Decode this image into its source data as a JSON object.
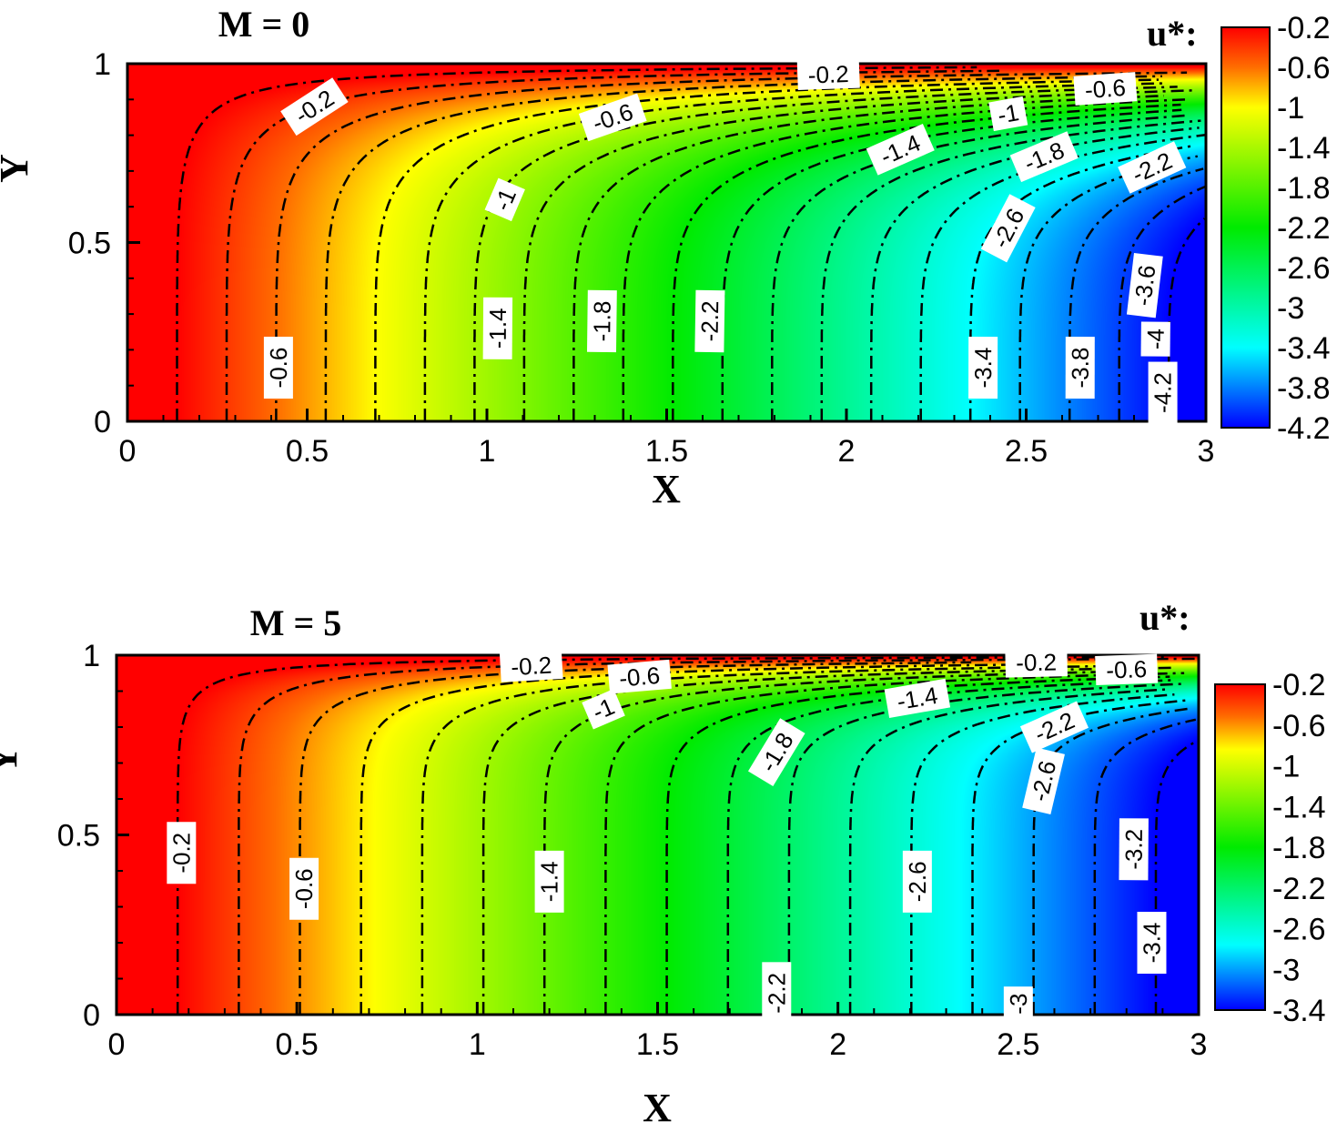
{
  "chart_data": [
    {
      "type": "heatmap",
      "subtype": "filled-contour",
      "title": "M = 0",
      "xlabel": "X",
      "ylabel": "Y",
      "xlim": [
        0,
        3
      ],
      "ylim": [
        0,
        1
      ],
      "xticks": [
        "0",
        "0.5",
        "1",
        "1.5",
        "2",
        "2.5",
        "3"
      ],
      "yticks": [
        "0",
        "0.5",
        "1"
      ],
      "colorbar": {
        "title": "u*:",
        "ticks": [
          "-0.2",
          "-0.6",
          "-1",
          "-1.4",
          "-1.8",
          "-2.2",
          "-2.6",
          "-3",
          "-3.4",
          "-3.8",
          "-4.2"
        ],
        "range": [
          -4.2,
          -0.2
        ]
      },
      "field_model": {
        "amplitude": 1.45,
        "boundary_exponent": 6
      },
      "levels": {
        "from": -0.2,
        "to": -4.2,
        "step": -0.2
      },
      "contour_labels": [
        {
          "text": "-0.2",
          "x": 0.52,
          "y": 0.88
        },
        {
          "text": "-0.2",
          "x": 1.95,
          "y": 0.97
        },
        {
          "text": "-0.6",
          "x": 1.35,
          "y": 0.85
        },
        {
          "text": "-0.6",
          "x": 2.72,
          "y": 0.93
        },
        {
          "text": "-1",
          "x": 1.05,
          "y": 0.62
        },
        {
          "text": "-1",
          "x": 2.45,
          "y": 0.86
        },
        {
          "text": "-1.4",
          "x": 2.15,
          "y": 0.76
        },
        {
          "text": "-1.4",
          "x": 1.03,
          "y": 0.26
        },
        {
          "text": "-1.8",
          "x": 2.55,
          "y": 0.74
        },
        {
          "text": "-1.8",
          "x": 1.32,
          "y": 0.28
        },
        {
          "text": "-2.2",
          "x": 2.85,
          "y": 0.71
        },
        {
          "text": "-2.2",
          "x": 1.62,
          "y": 0.28
        },
        {
          "text": "-2.6",
          "x": 2.45,
          "y": 0.54
        },
        {
          "text": "-3.4",
          "x": 2.38,
          "y": 0.15
        },
        {
          "text": "-3.6",
          "x": 2.83,
          "y": 0.38
        },
        {
          "text": "-3.8",
          "x": 2.65,
          "y": 0.15
        },
        {
          "text": "-4",
          "x": 2.86,
          "y": 0.23
        },
        {
          "text": "-4.2",
          "x": 2.88,
          "y": 0.08
        },
        {
          "text": "-0.6",
          "x": 0.42,
          "y": 0.15
        }
      ]
    },
    {
      "type": "heatmap",
      "subtype": "filled-contour",
      "title": "M = 5",
      "xlabel": "X",
      "ylabel": "Y",
      "xlim": [
        0,
        3
      ],
      "ylim": [
        0,
        1
      ],
      "xticks": [
        "0",
        "0.5",
        "1",
        "1.5",
        "2",
        "2.5",
        "3"
      ],
      "yticks": [
        "0",
        "0.5",
        "1"
      ],
      "colorbar": {
        "title": "u*:",
        "ticks": [
          "-0.2",
          "-0.6",
          "-1",
          "-1.4",
          "-1.8",
          "-2.2",
          "-2.6",
          "-3",
          "-3.4"
        ],
        "range": [
          -3.4,
          -0.2
        ]
      },
      "field_model": {
        "amplitude": 1.18,
        "boundary_exponent": 12
      },
      "levels": {
        "from": -0.2,
        "to": -3.4,
        "step": -0.2
      },
      "contour_labels": [
        {
          "text": "-0.2",
          "x": 1.15,
          "y": 0.97
        },
        {
          "text": "-0.2",
          "x": 2.55,
          "y": 0.98
        },
        {
          "text": "-0.6",
          "x": 1.45,
          "y": 0.94
        },
        {
          "text": "-0.6",
          "x": 2.8,
          "y": 0.96
        },
        {
          "text": "-1",
          "x": 1.35,
          "y": 0.85
        },
        {
          "text": "-1.4",
          "x": 2.22,
          "y": 0.88
        },
        {
          "text": "-1.8",
          "x": 1.83,
          "y": 0.73
        },
        {
          "text": "-2.2",
          "x": 2.6,
          "y": 0.8
        },
        {
          "text": "-2.6",
          "x": 2.57,
          "y": 0.65
        },
        {
          "text": "-0.2",
          "x": 0.18,
          "y": 0.45
        },
        {
          "text": "-0.6",
          "x": 0.52,
          "y": 0.35
        },
        {
          "text": "-1.4",
          "x": 1.2,
          "y": 0.37
        },
        {
          "text": "-2.6",
          "x": 2.22,
          "y": 0.37
        },
        {
          "text": "-3.2",
          "x": 2.82,
          "y": 0.46
        },
        {
          "text": "-3.4",
          "x": 2.87,
          "y": 0.2
        },
        {
          "text": "-2.2",
          "x": 1.83,
          "y": 0.06
        },
        {
          "text": "-3",
          "x": 2.5,
          "y": 0.03
        }
      ]
    }
  ]
}
